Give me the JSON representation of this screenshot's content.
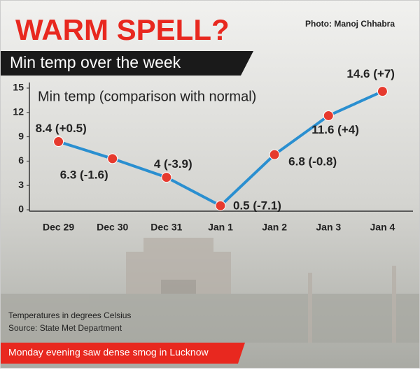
{
  "chart_data": {
    "type": "line",
    "title": "WARM SPELL?",
    "subtitle": "Min temp over the week",
    "credit": "Photo: Manoj Chhabra",
    "annotation": "Min temp (comparison with normal)",
    "notes": [
      "Temperatures in degrees Celsius",
      "Source: State Met Department"
    ],
    "caption": "Monday evening saw dense smog in Lucknow",
    "categories": [
      "Dec 29",
      "Dec 30",
      "Dec 31",
      "Jan 1",
      "Jan 2",
      "Jan 3",
      "Jan 4"
    ],
    "values": [
      8.4,
      6.3,
      4,
      0.5,
      6.8,
      11.6,
      14.6
    ],
    "value_labels": [
      "8.4 (+0.5)",
      "6.3 (-1.6)",
      "4 (-3.9)",
      "0.5 (-7.1)",
      "6.8 (-0.8)",
      "11.6 (+4)",
      "14.6 (+7)"
    ],
    "color": "#2a8fd0",
    "marker_color": "#e63a2e",
    "ylim": [
      0,
      15
    ],
    "yticks": [
      0,
      3,
      6,
      9,
      12,
      15
    ]
  }
}
